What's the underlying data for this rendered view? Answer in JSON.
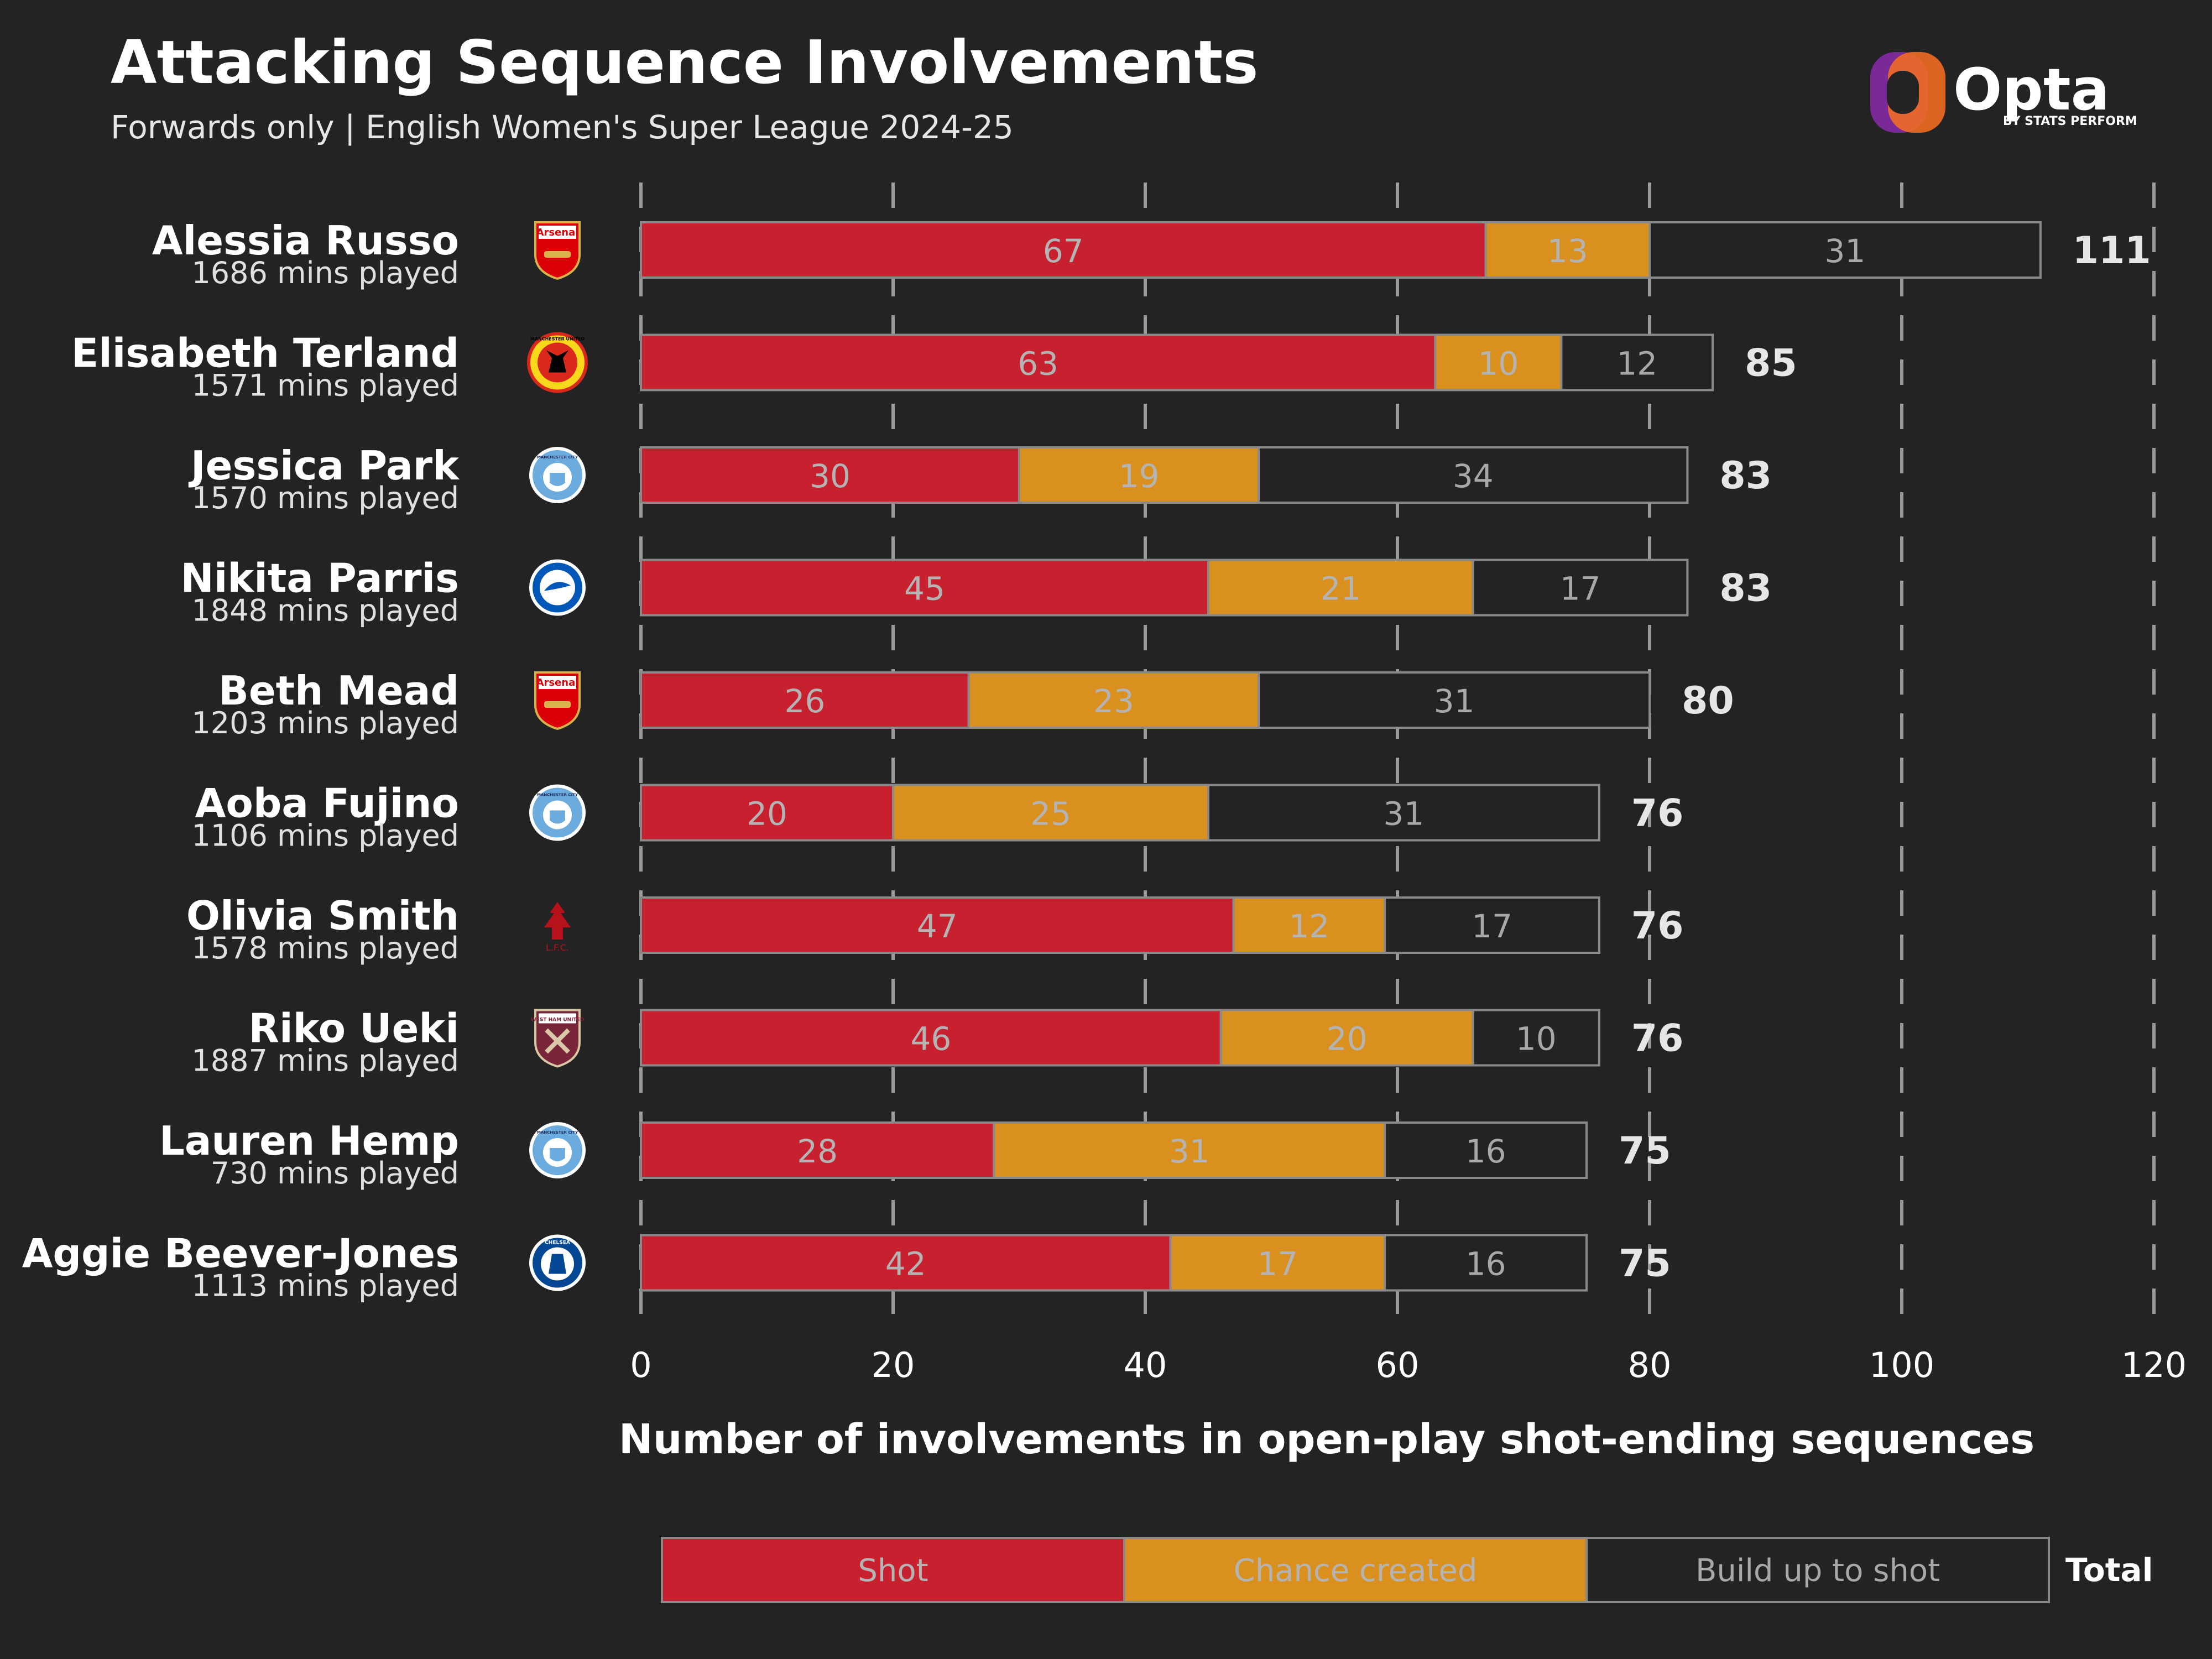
{
  "header": {
    "title": "Attacking Sequence Involvements",
    "subtitle": "Forwards only | English Women's Super League 2024-25"
  },
  "logo": {
    "name": "Opta",
    "tagline": "BY STATS PERFORM"
  },
  "colors": {
    "background": "#232323",
    "shot": "#c7202e",
    "chance": "#d9901f",
    "buildup": "#232323",
    "bar_outline": "#8a8a8a",
    "grid": "#9a9a9a",
    "text": "#ffffff",
    "muted_label": "#b4b4b4"
  },
  "chart_data": {
    "type": "bar",
    "orientation": "horizontal",
    "stacked": true,
    "title": "Attacking Sequence Involvements",
    "subtitle": "Forwards only | English Women's Super League 2024-25",
    "xlabel": "Number of involvements in open-play shot-ending sequences",
    "ylabel": "",
    "xlim": [
      0,
      120
    ],
    "xticks": [
      0,
      20,
      40,
      60,
      80,
      100,
      120
    ],
    "grid": true,
    "legend": [
      "Shot",
      "Chance created",
      "Build up to shot"
    ],
    "legend_total_label": "Total",
    "legend_position": "bottom",
    "players": [
      {
        "name": "Alessia Russo",
        "minutes": "1686 mins played",
        "club": "Arsenal",
        "club_icon": "arsenal-crest-icon",
        "badge_text": "Arsenal"
      },
      {
        "name": "Elisabeth Terland",
        "minutes": "1571 mins played",
        "club": "Manchester United",
        "club_icon": "manchester-united-crest-icon",
        "badge_text": "MANCHESTER UNITED"
      },
      {
        "name": "Jessica Park",
        "minutes": "1570 mins played",
        "club": "Manchester City",
        "club_icon": "manchester-city-crest-icon",
        "badge_text": "MANCHESTER CITY"
      },
      {
        "name": "Nikita Parris",
        "minutes": "1848 mins played",
        "club": "Brighton",
        "club_icon": "brighton-crest-icon",
        "badge_text": ""
      },
      {
        "name": "Beth Mead",
        "minutes": "1203 mins played",
        "club": "Arsenal",
        "club_icon": "arsenal-crest-icon",
        "badge_text": "Arsenal"
      },
      {
        "name": "Aoba Fujino",
        "minutes": "1106 mins played",
        "club": "Manchester City",
        "club_icon": "manchester-city-crest-icon",
        "badge_text": "MANCHESTER CITY"
      },
      {
        "name": "Olivia Smith",
        "minutes": "1578 mins played",
        "club": "Liverpool",
        "club_icon": "liverpool-crest-icon",
        "badge_text": "L.F.C."
      },
      {
        "name": "Riko Ueki",
        "minutes": "1887 mins played",
        "club": "West Ham United",
        "club_icon": "west-ham-crest-icon",
        "badge_text": "WEST HAM UNITED"
      },
      {
        "name": "Lauren Hemp",
        "minutes": "730 mins played",
        "club": "Manchester City",
        "club_icon": "manchester-city-crest-icon",
        "badge_text": "MANCHESTER CITY"
      },
      {
        "name": "Aggie Beever-Jones",
        "minutes": "1113 mins played",
        "club": "Chelsea",
        "club_icon": "chelsea-crest-icon",
        "badge_text": "CHELSEA"
      }
    ],
    "series": [
      {
        "name": "Shot",
        "values": [
          67,
          63,
          30,
          45,
          26,
          20,
          47,
          46,
          28,
          42
        ]
      },
      {
        "name": "Chance created",
        "values": [
          13,
          10,
          19,
          21,
          23,
          25,
          12,
          20,
          31,
          17
        ]
      },
      {
        "name": "Build up to shot",
        "values": [
          31,
          12,
          34,
          17,
          31,
          31,
          17,
          10,
          16,
          16
        ]
      }
    ],
    "totals": [
      111,
      85,
      83,
      83,
      80,
      76,
      76,
      76,
      75,
      75
    ]
  }
}
